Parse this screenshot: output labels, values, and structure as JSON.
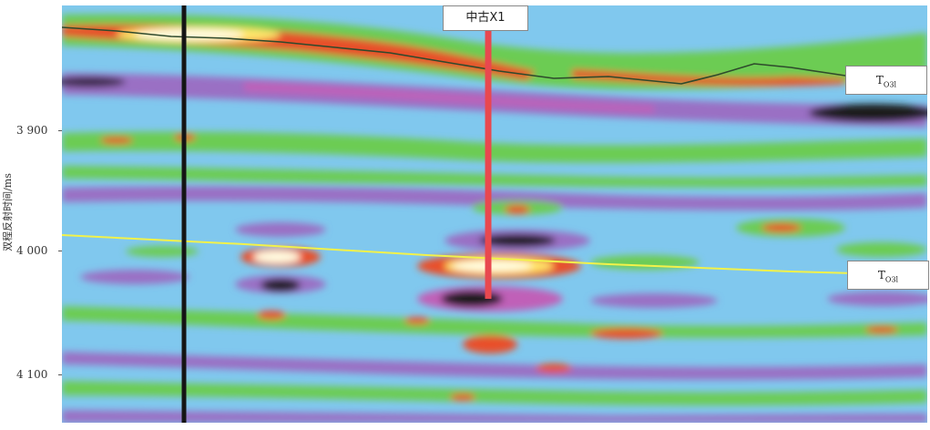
{
  "axis": {
    "title": "双程反射时间/ms",
    "ticks": [
      "3 900",
      "4 000",
      "4 100"
    ]
  },
  "well": {
    "name": "中古X1",
    "color": "#e8484f"
  },
  "horizons": {
    "top": {
      "label": "T",
      "sub": "O3l",
      "color": "#2e4a2c"
    },
    "bottom": {
      "label": "T",
      "sub": "O3l",
      "color": "#f2f24a"
    }
  },
  "palette": {
    "background": "#80c8ee",
    "green": "#6ccc52",
    "purple": "#9a70c4",
    "magenta": "#c060b8",
    "red": "#e8502a",
    "yellow": "#fff27a",
    "black": "#1a1a1a"
  }
}
